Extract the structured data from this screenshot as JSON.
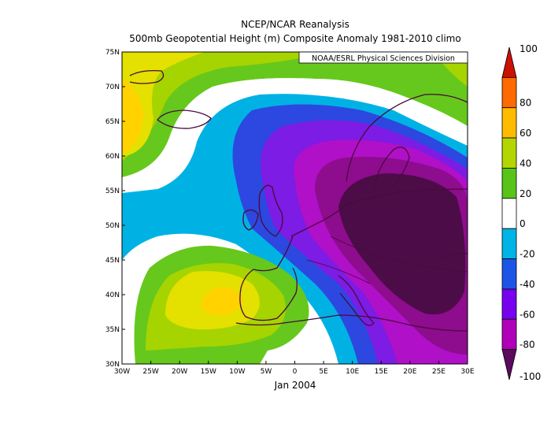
{
  "title_line1": "NCEP/NCAR Reanalysis",
  "title_line2": "500mb Geopotential Height (m) Composite Anomaly 1981-2010 climo",
  "credit": "NOAA/ESRL Physical Sciences Division",
  "period_label": "Jan 2004",
  "map": {
    "lon_range": [
      -30,
      30
    ],
    "lat_range": [
      30,
      75
    ],
    "lon_ticks": [
      {
        "v": -30,
        "label": "30W"
      },
      {
        "v": -25,
        "label": "25W"
      },
      {
        "v": -20,
        "label": "20W"
      },
      {
        "v": -15,
        "label": "15W"
      },
      {
        "v": -10,
        "label": "10W"
      },
      {
        "v": -5,
        "label": "5W"
      },
      {
        "v": 0,
        "label": "0"
      },
      {
        "v": 5,
        "label": "5E"
      },
      {
        "v": 10,
        "label": "10E"
      },
      {
        "v": 15,
        "label": "15E"
      },
      {
        "v": 20,
        "label": "20E"
      },
      {
        "v": 25,
        "label": "25E"
      },
      {
        "v": 30,
        "label": "30E"
      }
    ],
    "lat_ticks": [
      {
        "v": 30,
        "label": "30N"
      },
      {
        "v": 35,
        "label": "35N"
      },
      {
        "v": 40,
        "label": "40N"
      },
      {
        "v": 45,
        "label": "45N"
      },
      {
        "v": 50,
        "label": "50N"
      },
      {
        "v": 55,
        "label": "55N"
      },
      {
        "v": 60,
        "label": "60N"
      },
      {
        "v": 65,
        "label": "65N"
      },
      {
        "v": 70,
        "label": "70N"
      },
      {
        "v": 75,
        "label": "75N"
      }
    ],
    "anomaly_centers": [
      {
        "name": "negative-center",
        "lon": 22,
        "lat": 47,
        "value": -110
      },
      {
        "name": "positive-center-atlantic",
        "lon": -11,
        "lat": 39,
        "value": 50
      },
      {
        "name": "positive-center-north",
        "lon": -30,
        "lat": 65,
        "value": 55
      }
    ]
  },
  "colorbar": {
    "levels": [
      {
        "label": "100",
        "color": "#cc1100"
      },
      {
        "label": "80",
        "color": "#ff6a00"
      },
      {
        "label": "60",
        "color": "#ffbb00"
      },
      {
        "label": "40",
        "color": "#b4d600"
      },
      {
        "label": "20",
        "color": "#58c41a"
      },
      {
        "label": "0",
        "color": "#ffffff"
      },
      {
        "label": "-20",
        "color": "#00b4e6"
      },
      {
        "label": "-40",
        "color": "#1c55e6"
      },
      {
        "label": "-60",
        "color": "#7700ee"
      },
      {
        "label": "-80",
        "color": "#b000b8"
      },
      {
        "label": "-100",
        "color": "#5c0a5c"
      }
    ]
  },
  "colors": {
    "coastline": "#4a0a3a",
    "neg_100": "#4c0c48",
    "neg_80": "#8e0c8e",
    "neg_60": "#b010c8",
    "neg_40": "#7c1ce4",
    "neg_20": "#2c48e0",
    "neg_10": "#00b2e4",
    "zero": "#ffffff",
    "pos_10": "#66c81c",
    "pos_20": "#a6d400",
    "pos_40": "#e4e000",
    "pos_60": "#ffd200"
  }
}
